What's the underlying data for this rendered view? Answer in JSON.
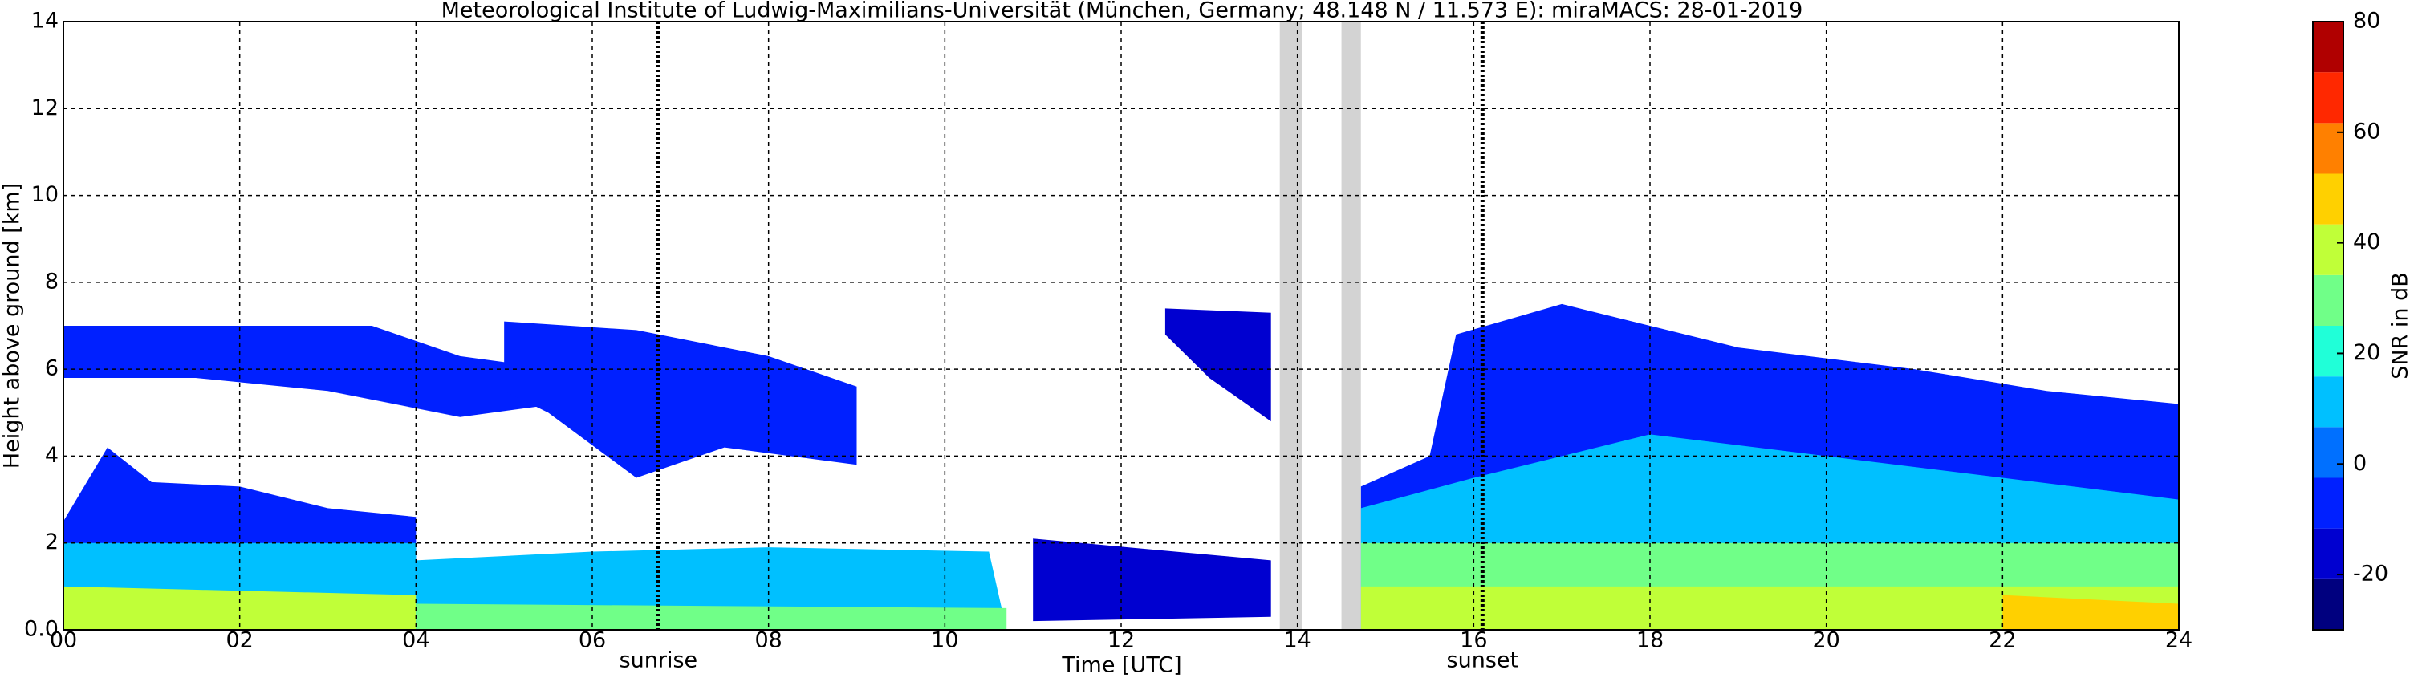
{
  "chart_data": {
    "type": "time-height",
    "title": "Meteorological Institute of Ludwig-Maximilians-Universität (München, Germany; 48.148 N / 11.573 E):    miraMACS: 28-01-2019",
    "x_label": "Time [UTC]",
    "y_label": "Height above ground [km]",
    "colorbar_label": "SNR in dB",
    "xlim": [
      0,
      24
    ],
    "xticks": [
      {
        "value": 0,
        "label": "00"
      },
      {
        "value": 2,
        "label": "02"
      },
      {
        "value": 4,
        "label": "04"
      },
      {
        "value": 6,
        "label": "06"
      },
      {
        "value": 8,
        "label": "08"
      },
      {
        "value": 10,
        "label": "10"
      },
      {
        "value": 12,
        "label": "12"
      },
      {
        "value": 14,
        "label": "14"
      },
      {
        "value": 16,
        "label": "16"
      },
      {
        "value": 18,
        "label": "18"
      },
      {
        "value": 20,
        "label": "20"
      },
      {
        "value": 22,
        "label": "22"
      },
      {
        "value": 24,
        "label": "24"
      }
    ],
    "ylim": [
      0,
      14
    ],
    "yticks": [
      {
        "value": 0,
        "label": "0.0"
      },
      2,
      4,
      6,
      8,
      10,
      12,
      14
    ],
    "clim": [
      -30,
      80
    ],
    "cticks": [
      -20,
      0,
      20,
      40,
      60,
      80
    ],
    "colormap": [
      "#00007f",
      "#0000d0",
      "#0020ff",
      "#0070ff",
      "#00c0ff",
      "#20ffd8",
      "#70ff88",
      "#c0ff38",
      "#ffd000",
      "#ff8000",
      "#ff2800",
      "#b00000"
    ],
    "grid": true,
    "gaps": [
      [
        13.8,
        14.05
      ],
      [
        14.5,
        14.72
      ]
    ],
    "events": [
      {
        "label": "sunrise",
        "time": 6.75
      },
      {
        "label": "sunset",
        "time": 16.1
      }
    ],
    "regions": [
      {
        "t": [
          0,
          3.5,
          4.5,
          5.6,
          5.6,
          4.5,
          3,
          1.5,
          0
        ],
        "h": [
          7,
          7,
          6.3,
          6,
          5.2,
          4.9,
          5.5,
          5.8,
          5.8
        ],
        "snr": -10
      },
      {
        "t": [
          5,
          6.5,
          8,
          9,
          9,
          7.5,
          6.5,
          5.5,
          5
        ],
        "h": [
          7.1,
          6.9,
          6.3,
          5.6,
          3.8,
          4.2,
          3.5,
          5,
          5.5
        ],
        "snr": -5
      },
      {
        "t": [
          0,
          0.5,
          1,
          2,
          3,
          4,
          4,
          0
        ],
        "h": [
          2.5,
          4.2,
          3.4,
          3.3,
          2.8,
          2.6,
          0,
          0
        ],
        "snr": -5
      },
      {
        "t": [
          0,
          4,
          4,
          0
        ],
        "h": [
          2,
          2,
          0,
          0
        ],
        "snr": 15
      },
      {
        "t": [
          0,
          4,
          4,
          0
        ],
        "h": [
          1,
          0.8,
          0,
          0
        ],
        "snr": 40
      },
      {
        "t": [
          4,
          6,
          8,
          10.5,
          10.7,
          4
        ],
        "h": [
          1.6,
          1.8,
          1.9,
          1.8,
          0,
          0
        ],
        "snr": 10
      },
      {
        "t": [
          4,
          10.7,
          10.7,
          4
        ],
        "h": [
          0.6,
          0.5,
          0,
          0
        ],
        "snr": 25
      },
      {
        "t": [
          11,
          13.7,
          13.7,
          11
        ],
        "h": [
          2.1,
          1.6,
          0.3,
          0.2
        ],
        "snr": -15
      },
      {
        "t": [
          12.5,
          13.7,
          13.7,
          13,
          12.5
        ],
        "h": [
          7.4,
          7.3,
          4.8,
          5.8,
          6.8
        ],
        "snr": -20
      },
      {
        "t": [
          14.72,
          15.5,
          15.8,
          17,
          19,
          21,
          22.5,
          24,
          24,
          14.72
        ],
        "h": [
          3.3,
          4,
          6.8,
          7.5,
          6.5,
          6,
          5.5,
          5.2,
          0,
          0
        ],
        "snr": -10
      },
      {
        "t": [
          14.72,
          16,
          18,
          20,
          22,
          24,
          24,
          14.72
        ],
        "h": [
          2.8,
          3.5,
          4.5,
          4,
          3.5,
          3,
          0,
          0
        ],
        "snr": 10
      },
      {
        "t": [
          14.72,
          24,
          24,
          14.72
        ],
        "h": [
          2,
          2,
          0,
          0
        ],
        "snr": 25
      },
      {
        "t": [
          14.72,
          24,
          24,
          14.72
        ],
        "h": [
          1,
          1,
          0,
          0
        ],
        "snr": 40
      },
      {
        "t": [
          22,
          24,
          24,
          22
        ],
        "h": [
          0.8,
          0.6,
          0,
          0
        ],
        "snr": 52
      }
    ]
  }
}
